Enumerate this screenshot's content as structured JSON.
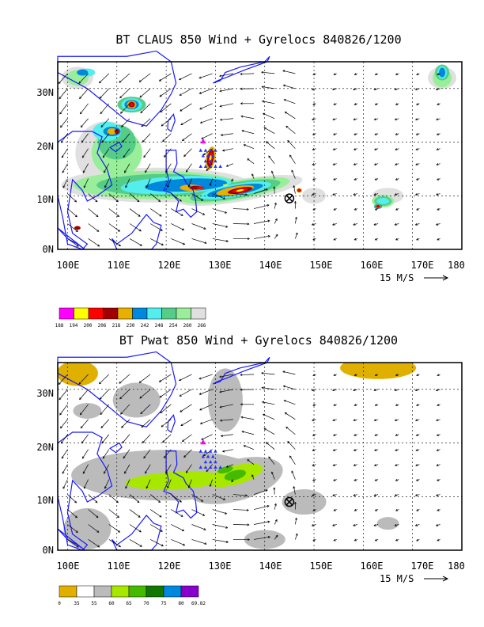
{
  "colors": {
    "coast": "#1a1aff",
    "grid": "#000000",
    "vector": "#000000",
    "claus_levels": [
      "#ff00ff",
      "#ffff00",
      "#ff0000",
      "#a00000",
      "#e8b000",
      "#0088dd",
      "#55eeee",
      "#55cc88",
      "#99ee99",
      "#e0e0e0"
    ],
    "pwat_levels": [
      "#e0b000",
      "#ffffff",
      "#bbbbbb",
      "#a8e800",
      "#44bb00",
      "#117700",
      "#0088dd",
      "#8800cc"
    ],
    "storm_marker": "#ff00ff",
    "obs_marker": "#2233ff"
  },
  "panels": [
    {
      "id": "claus",
      "title": "BT CLAUS 850 Wind + Gyrelocs 840826/1200",
      "x_ticks": [
        "100E",
        "110E",
        "120E",
        "130E",
        "140E",
        "150E",
        "160E",
        "170E",
        "180"
      ],
      "y_ticks": [
        "0N",
        "10N",
        "20N",
        "30N"
      ],
      "vector_scale_label": "15 M/S",
      "colorbar_labels": [
        "188",
        "194",
        "200",
        "206",
        "218",
        "230",
        "242",
        "248",
        "254",
        "260",
        "266"
      ],
      "storm_center": {
        "lon": 145,
        "lat": 9.5
      }
    },
    {
      "id": "pwat",
      "title": "BT Pwat 850 Wind + Gyrelocs 840826/1200",
      "x_ticks": [
        "100E",
        "110E",
        "120E",
        "130E",
        "140E",
        "150E",
        "160E",
        "170E",
        "180"
      ],
      "y_ticks": [
        "0N",
        "10N",
        "20N",
        "30N"
      ],
      "vector_scale_label": "15 M/S",
      "colorbar_labels": [
        "0",
        "35",
        "55",
        "60",
        "65",
        "70",
        "75",
        "80",
        "69.82"
      ],
      "storm_center": {
        "lon": 145,
        "lat": 9
      }
    }
  ]
}
